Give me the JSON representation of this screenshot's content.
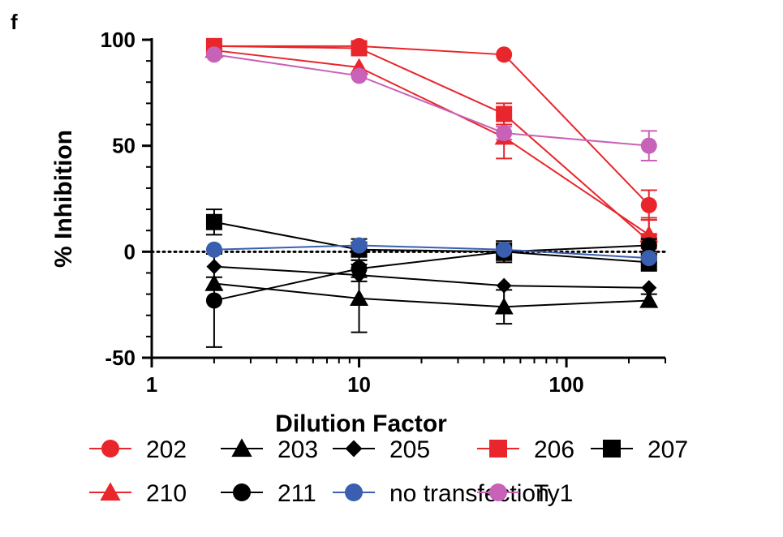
{
  "panel_label": "f",
  "chart_data": {
    "type": "line",
    "xlabel": "Dilution Factor",
    "ylabel": "% Inhibition",
    "xscale": "log",
    "xlim": [
      1,
      300
    ],
    "ylim": [
      -50,
      100
    ],
    "x_ticks": [
      1,
      10,
      100
    ],
    "x_tick_labels": [
      "1",
      "10",
      "100"
    ],
    "y_ticks": [
      -50,
      0,
      50,
      100
    ],
    "y_tick_labels": [
      "-50",
      "0",
      "50",
      "100"
    ],
    "reference_line": {
      "y": 0,
      "style": "dotted"
    },
    "legend_position": "bottom",
    "x": [
      2,
      10,
      50,
      250
    ],
    "series": [
      {
        "name": "202",
        "color": "#e8262b",
        "marker": "circle",
        "values": [
          97,
          97,
          93,
          22
        ],
        "errors": [
          1,
          1,
          1,
          7
        ]
      },
      {
        "name": "203",
        "color": "#000000",
        "marker": "triangle",
        "values": [
          -15,
          -22,
          -26,
          -23
        ],
        "errors": [
          3,
          16,
          8,
          3
        ]
      },
      {
        "name": "205",
        "color": "#000000",
        "marker": "diamond",
        "values": [
          -7,
          -11,
          -16,
          -17
        ],
        "errors": [
          2,
          3,
          2,
          2
        ]
      },
      {
        "name": "206",
        "color": "#e8262b",
        "marker": "square",
        "values": [
          97,
          96,
          65,
          5
        ],
        "errors": [
          1,
          1,
          5,
          10
        ]
      },
      {
        "name": "207",
        "color": "#000000",
        "marker": "square",
        "values": [
          14,
          1,
          0,
          -5
        ],
        "errors": [
          6,
          5,
          5,
          4
        ]
      },
      {
        "name": "210",
        "color": "#e8262b",
        "marker": "triangle",
        "values": [
          95,
          87,
          54,
          8
        ],
        "errors": [
          1,
          2,
          10,
          8
        ]
      },
      {
        "name": "211",
        "color": "#000000",
        "marker": "circle",
        "values": [
          -23,
          -8,
          0,
          3
        ],
        "errors": [
          22,
          4,
          4,
          3
        ]
      },
      {
        "name": "no transfection",
        "color": "#3a5fb0",
        "marker": "circle",
        "values": [
          1,
          3,
          1,
          -3
        ],
        "errors": [
          2,
          2,
          2,
          2
        ]
      },
      {
        "name": "Ty1",
        "color": "#c862b8",
        "marker": "circle",
        "values": [
          93,
          83,
          56,
          50
        ],
        "errors": [
          1,
          1,
          3,
          7
        ]
      }
    ]
  }
}
